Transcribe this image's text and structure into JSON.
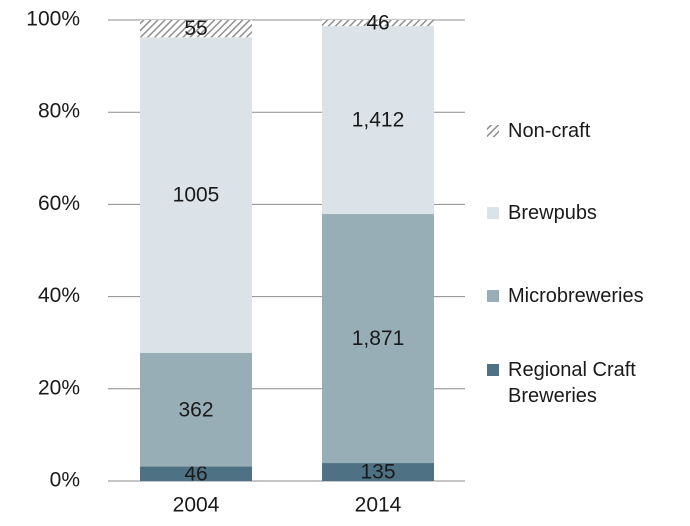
{
  "chart_data": {
    "type": "bar",
    "stack": "percent",
    "categories": [
      "2004",
      "2014"
    ],
    "series": [
      {
        "name": "Regional Craft Breweries",
        "color": "#4e7283",
        "values": [
          46,
          135
        ]
      },
      {
        "name": "Microbreweries",
        "color": "#98aeb6",
        "values": [
          362,
          1871
        ],
        "value_labels": [
          "362",
          "1,871"
        ]
      },
      {
        "name": "Brewpubs",
        "color": "#dce3e8",
        "values": [
          1005,
          1412
        ],
        "value_labels": [
          "1005",
          "1,412"
        ]
      },
      {
        "name": "Non-craft",
        "color": "#8f8f8f",
        "hatch": true,
        "values": [
          55,
          46
        ]
      }
    ],
    "ylim": [
      0,
      100
    ],
    "yticks": [
      {
        "value": 0,
        "label": "0%"
      },
      {
        "value": 20,
        "label": "20%"
      },
      {
        "value": 40,
        "label": "40%"
      },
      {
        "value": 60,
        "label": "60%"
      },
      {
        "value": 80,
        "label": "80%"
      },
      {
        "value": 100,
        "label": "100%"
      }
    ],
    "grid": true,
    "legend": "right"
  }
}
